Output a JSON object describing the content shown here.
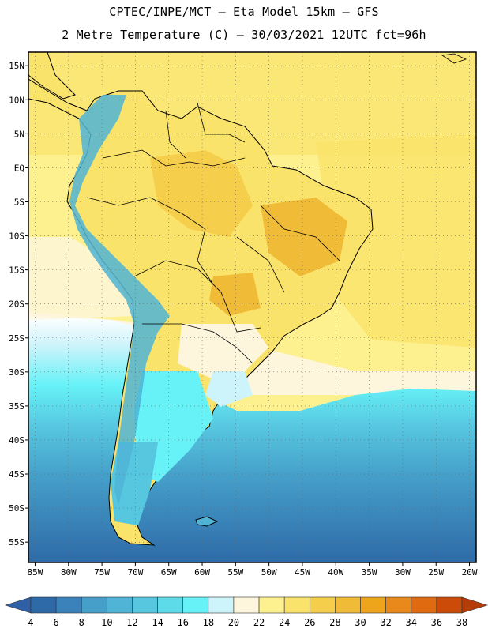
{
  "header": {
    "line1": "CPTEC/INPE/MCT –  Eta Model 15km – GFS",
    "line2": "2 Metre Temperature (C) – 30/03/2021 12UTC fct=96h"
  },
  "map": {
    "lon_range": [
      -86,
      -19
    ],
    "lat_range": [
      17,
      -58
    ],
    "lat_labels": [
      {
        "v": 15,
        "t": "15N"
      },
      {
        "v": 10,
        "t": "10N"
      },
      {
        "v": 5,
        "t": "5N"
      },
      {
        "v": 0,
        "t": "EQ"
      },
      {
        "v": -5,
        "t": "5S"
      },
      {
        "v": -10,
        "t": "10S"
      },
      {
        "v": -15,
        "t": "15S"
      },
      {
        "v": -20,
        "t": "20S"
      },
      {
        "v": -25,
        "t": "25S"
      },
      {
        "v": -30,
        "t": "30S"
      },
      {
        "v": -35,
        "t": "35S"
      },
      {
        "v": -40,
        "t": "40S"
      },
      {
        "v": -45,
        "t": "45S"
      },
      {
        "v": -50,
        "t": "50S"
      },
      {
        "v": -55,
        "t": "55S"
      }
    ],
    "lon_labels": [
      {
        "v": -85,
        "t": "85W"
      },
      {
        "v": -80,
        "t": "80W"
      },
      {
        "v": -75,
        "t": "75W"
      },
      {
        "v": -70,
        "t": "70W"
      },
      {
        "v": -65,
        "t": "65W"
      },
      {
        "v": -60,
        "t": "60W"
      },
      {
        "v": -55,
        "t": "55W"
      },
      {
        "v": -50,
        "t": "50W"
      },
      {
        "v": -45,
        "t": "45W"
      },
      {
        "v": -40,
        "t": "40W"
      },
      {
        "v": -35,
        "t": "35W"
      },
      {
        "v": -30,
        "t": "30W"
      },
      {
        "v": -25,
        "t": "25W"
      },
      {
        "v": -20,
        "t": "20W"
      }
    ],
    "grid": true
  },
  "colorbar": {
    "labels": [
      "4",
      "6",
      "8",
      "10",
      "12",
      "14",
      "16",
      "18",
      "20",
      "22",
      "24",
      "26",
      "28",
      "30",
      "32",
      "34",
      "36",
      "38"
    ],
    "colors": [
      "#2e6aa8",
      "#3b82bb",
      "#459fc9",
      "#4fb4d6",
      "#57c7e0",
      "#5edbe8",
      "#66f2f7",
      "#cdf3fb",
      "#fdf6dc",
      "#fdf08f",
      "#fae36a",
      "#f5cf4c",
      "#f0bc37",
      "#eea51c",
      "#e9891b",
      "#e06a10",
      "#cc4b08"
    ],
    "low_arrow": "#2f5fa5",
    "high_arrow": "#b33c08"
  }
}
